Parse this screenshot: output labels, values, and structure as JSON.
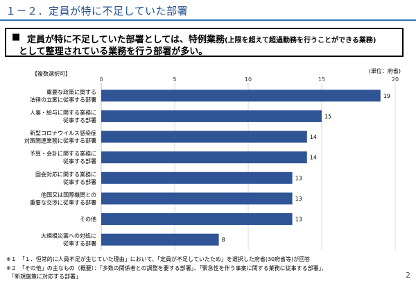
{
  "header": {
    "title": "１－２．定員が特に不足していた部署"
  },
  "callout": {
    "bullet": "■",
    "line1_main": "定員が特に不足していた部署としては、特例業務",
    "line1_small": "(上限を超えて超過勤務を行うことができる業務)",
    "line2": "として整理されている業務を行う部署が多い。"
  },
  "tag": "【複数選択可】",
  "unit": "(単位：府省)",
  "chart_data": {
    "type": "bar",
    "orientation": "horizontal",
    "categories": [
      [
        "重要な政策に関する",
        "法律の立案に従事する部署"
      ],
      [
        "人事・給与に関する業務に",
        "従事する部署"
      ],
      [
        "新型コロナウイルス感染症",
        "対策関連業務に従事する部署"
      ],
      [
        "予算・会計に関する業務に",
        "従事する部署"
      ],
      [
        "国会対応に関する業務に",
        "従事する部署"
      ],
      [
        "他国又は国際機関との",
        "重要な交渉に従事する部署"
      ],
      [
        "その他"
      ],
      [
        "大規模災害への対処に",
        "従事する部署"
      ]
    ],
    "values": [
      19,
      15,
      14,
      14,
      13,
      13,
      13,
      8
    ],
    "xlim": [
      0,
      20
    ],
    "xticks": [
      0,
      5,
      10,
      15,
      20
    ],
    "bar_color": "#2f5597",
    "grid": true
  },
  "notes": [
    "※１　「１．恒常的に人員不足が生じていた理由」において、「定員が不足していたため」を選択した府省(30府省等)が回答",
    "※２　「その他」の主なもの（概要）：「多数の関係者との調整を要する部署」、「緊急性を伴う事案に関する業務に従事する部署」、",
    "　「新規施策に対応する部署」"
  ],
  "page_number": "2"
}
